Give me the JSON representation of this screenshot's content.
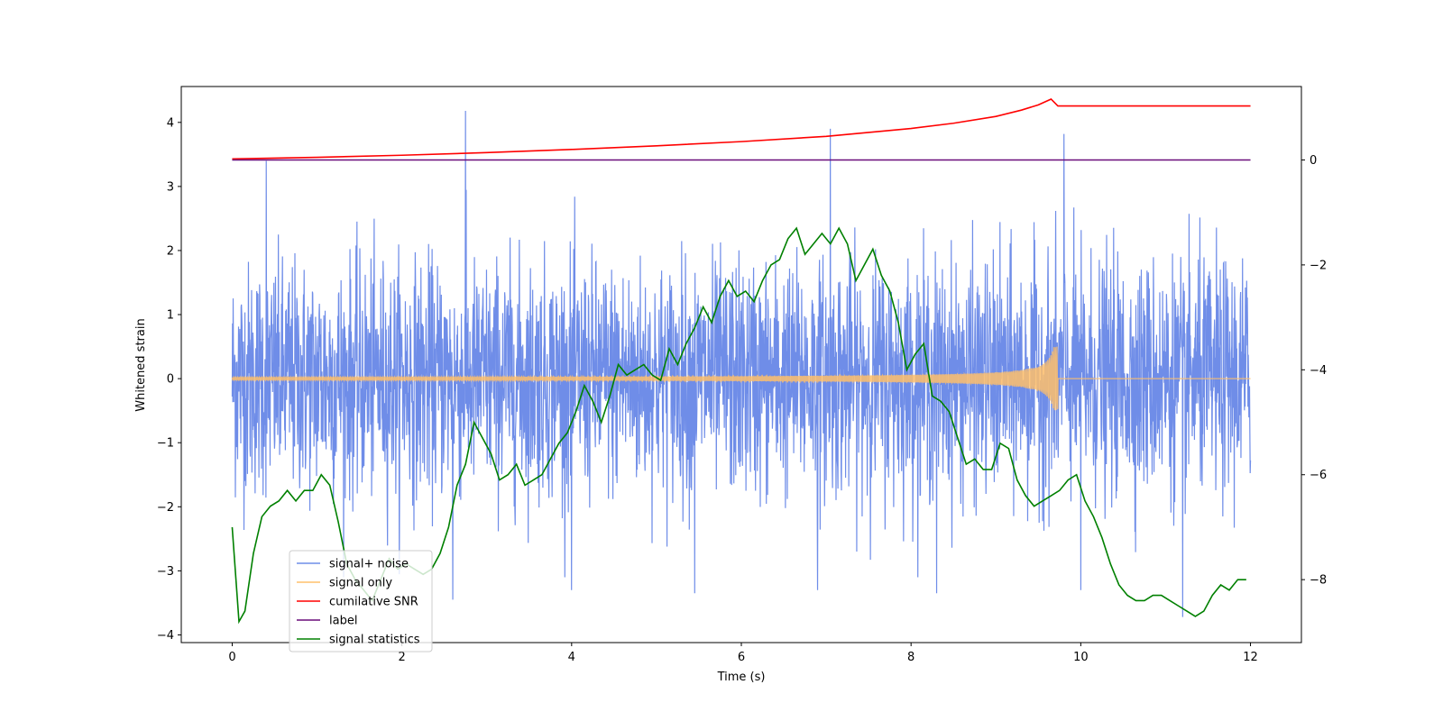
{
  "chart_data": {
    "type": "line",
    "title": "",
    "xlabel": "Time (s)",
    "ylabel": "Whitened strain",
    "y2label": "",
    "xlim": [
      -0.6,
      12.6
    ],
    "ylim": [
      -4.12,
      4.56
    ],
    "y2lim": [
      -9.2,
      1.4
    ],
    "xticks": [
      0,
      2,
      4,
      6,
      8,
      10,
      12
    ],
    "yticks": [
      -4,
      -3,
      -2,
      -1,
      0,
      1,
      2,
      3,
      4
    ],
    "y2ticks": [
      -8,
      -6,
      -4,
      -2,
      0
    ],
    "grid": false,
    "legend_position": "bottom-left",
    "series": [
      {
        "name": "signal+ noise",
        "axis": "left",
        "color": "#6f8de8",
        "description": "dense noise, std ~0.9, spikes to about +/-4",
        "x_range": [
          0,
          12
        ],
        "approx_std": 0.9,
        "peaks": [
          [
            2.75,
            4.18
          ],
          [
            7.05,
            3.9
          ],
          [
            9.8,
            3.82
          ],
          [
            0.4,
            3.4
          ],
          [
            11.2,
            -3.72
          ],
          [
            5.45,
            -3.35
          ],
          [
            2.6,
            -3.45
          ],
          [
            4.0,
            -3.3
          ],
          [
            6.9,
            -3.3
          ],
          [
            8.3,
            -3.35
          ],
          [
            10.0,
            -3.3
          ]
        ]
      },
      {
        "name": "signal only",
        "axis": "left",
        "color": "#ffc06b",
        "description": "chirp growing in amplitude until merger near t=9.73 then zero",
        "x_range": [
          0,
          12
        ],
        "merger_time": 9.73,
        "max_amplitude": 0.5
      },
      {
        "name": "cumilative SNR",
        "axis": "right",
        "color": "#ff0000",
        "x": [
          0,
          1,
          2,
          3,
          4,
          5,
          6,
          7,
          8,
          8.5,
          9,
          9.3,
          9.5,
          9.65,
          9.73,
          12
        ],
        "y": [
          0.02,
          0.05,
          0.09,
          0.14,
          0.2,
          0.27,
          0.35,
          0.45,
          0.6,
          0.7,
          0.83,
          0.95,
          1.05,
          1.16,
          1.03,
          1.03
        ]
      },
      {
        "name": "label",
        "axis": "right",
        "color": "#6a0d7a",
        "x": [
          0,
          12
        ],
        "y": [
          0,
          0
        ]
      },
      {
        "name": "signal statistics",
        "axis": "right",
        "color": "#008000",
        "x": [
          0,
          0.08,
          0.15,
          0.25,
          0.35,
          0.45,
          0.55,
          0.65,
          0.75,
          0.85,
          0.95,
          1.05,
          1.15,
          1.25,
          1.35,
          1.45,
          1.55,
          1.65,
          1.75,
          1.85,
          1.95,
          2.05,
          2.15,
          2.25,
          2.35,
          2.45,
          2.55,
          2.65,
          2.75,
          2.85,
          2.95,
          3.05,
          3.15,
          3.25,
          3.35,
          3.45,
          3.55,
          3.65,
          3.75,
          3.85,
          3.95,
          4.05,
          4.15,
          4.25,
          4.35,
          4.45,
          4.55,
          4.65,
          4.75,
          4.85,
          4.95,
          5.05,
          5.15,
          5.25,
          5.35,
          5.45,
          5.55,
          5.65,
          5.75,
          5.85,
          5.95,
          6.05,
          6.15,
          6.25,
          6.35,
          6.45,
          6.55,
          6.65,
          6.75,
          6.85,
          6.95,
          7.05,
          7.15,
          7.25,
          7.35,
          7.45,
          7.55,
          7.65,
          7.75,
          7.85,
          7.95,
          8.05,
          8.15,
          8.25,
          8.35,
          8.45,
          8.55,
          8.65,
          8.75,
          8.85,
          8.95,
          9.05,
          9.15,
          9.25,
          9.35,
          9.45,
          9.55,
          9.65,
          9.75,
          9.85,
          9.95,
          10.05,
          10.15,
          10.25,
          10.35,
          10.45,
          10.55,
          10.65,
          10.75,
          10.85,
          10.95,
          11.05,
          11.15,
          11.25,
          11.35,
          11.45,
          11.55,
          11.65,
          11.75,
          11.85,
          11.95
        ],
        "y": [
          -7.0,
          -8.8,
          -8.6,
          -7.5,
          -6.8,
          -6.6,
          -6.5,
          -6.3,
          -6.5,
          -6.3,
          -6.3,
          -6.0,
          -6.2,
          -6.9,
          -7.7,
          -8.0,
          -8.2,
          -8.4,
          -8.0,
          -7.6,
          -7.8,
          -7.7,
          -7.8,
          -7.9,
          -7.8,
          -7.5,
          -7.0,
          -6.2,
          -5.8,
          -5.0,
          -5.3,
          -5.6,
          -6.1,
          -6.0,
          -5.8,
          -6.2,
          -6.1,
          -6.0,
          -5.7,
          -5.4,
          -5.2,
          -4.8,
          -4.3,
          -4.6,
          -5.0,
          -4.5,
          -3.9,
          -4.1,
          -4.0,
          -3.9,
          -4.1,
          -4.2,
          -3.6,
          -3.9,
          -3.5,
          -3.2,
          -2.8,
          -3.1,
          -2.6,
          -2.3,
          -2.6,
          -2.5,
          -2.7,
          -2.3,
          -2.0,
          -1.9,
          -1.5,
          -1.3,
          -1.8,
          -1.6,
          -1.4,
          -1.6,
          -1.3,
          -1.6,
          -2.3,
          -2.0,
          -1.7,
          -2.2,
          -2.5,
          -3.1,
          -4.0,
          -3.7,
          -3.5,
          -4.5,
          -4.6,
          -4.8,
          -5.3,
          -5.8,
          -5.7,
          -5.9,
          -5.9,
          -5.4,
          -5.5,
          -6.1,
          -6.4,
          -6.6,
          -6.5,
          -6.4,
          -6.3,
          -6.1,
          -6.0,
          -6.5,
          -6.8,
          -7.2,
          -7.7,
          -8.1,
          -8.3,
          -8.4,
          -8.4,
          -8.3,
          -8.3,
          -8.4,
          -8.5,
          -8.6,
          -8.7,
          -8.6,
          -8.3,
          -8.1,
          -8.2,
          -8.0,
          -8.0
        ]
      }
    ]
  }
}
